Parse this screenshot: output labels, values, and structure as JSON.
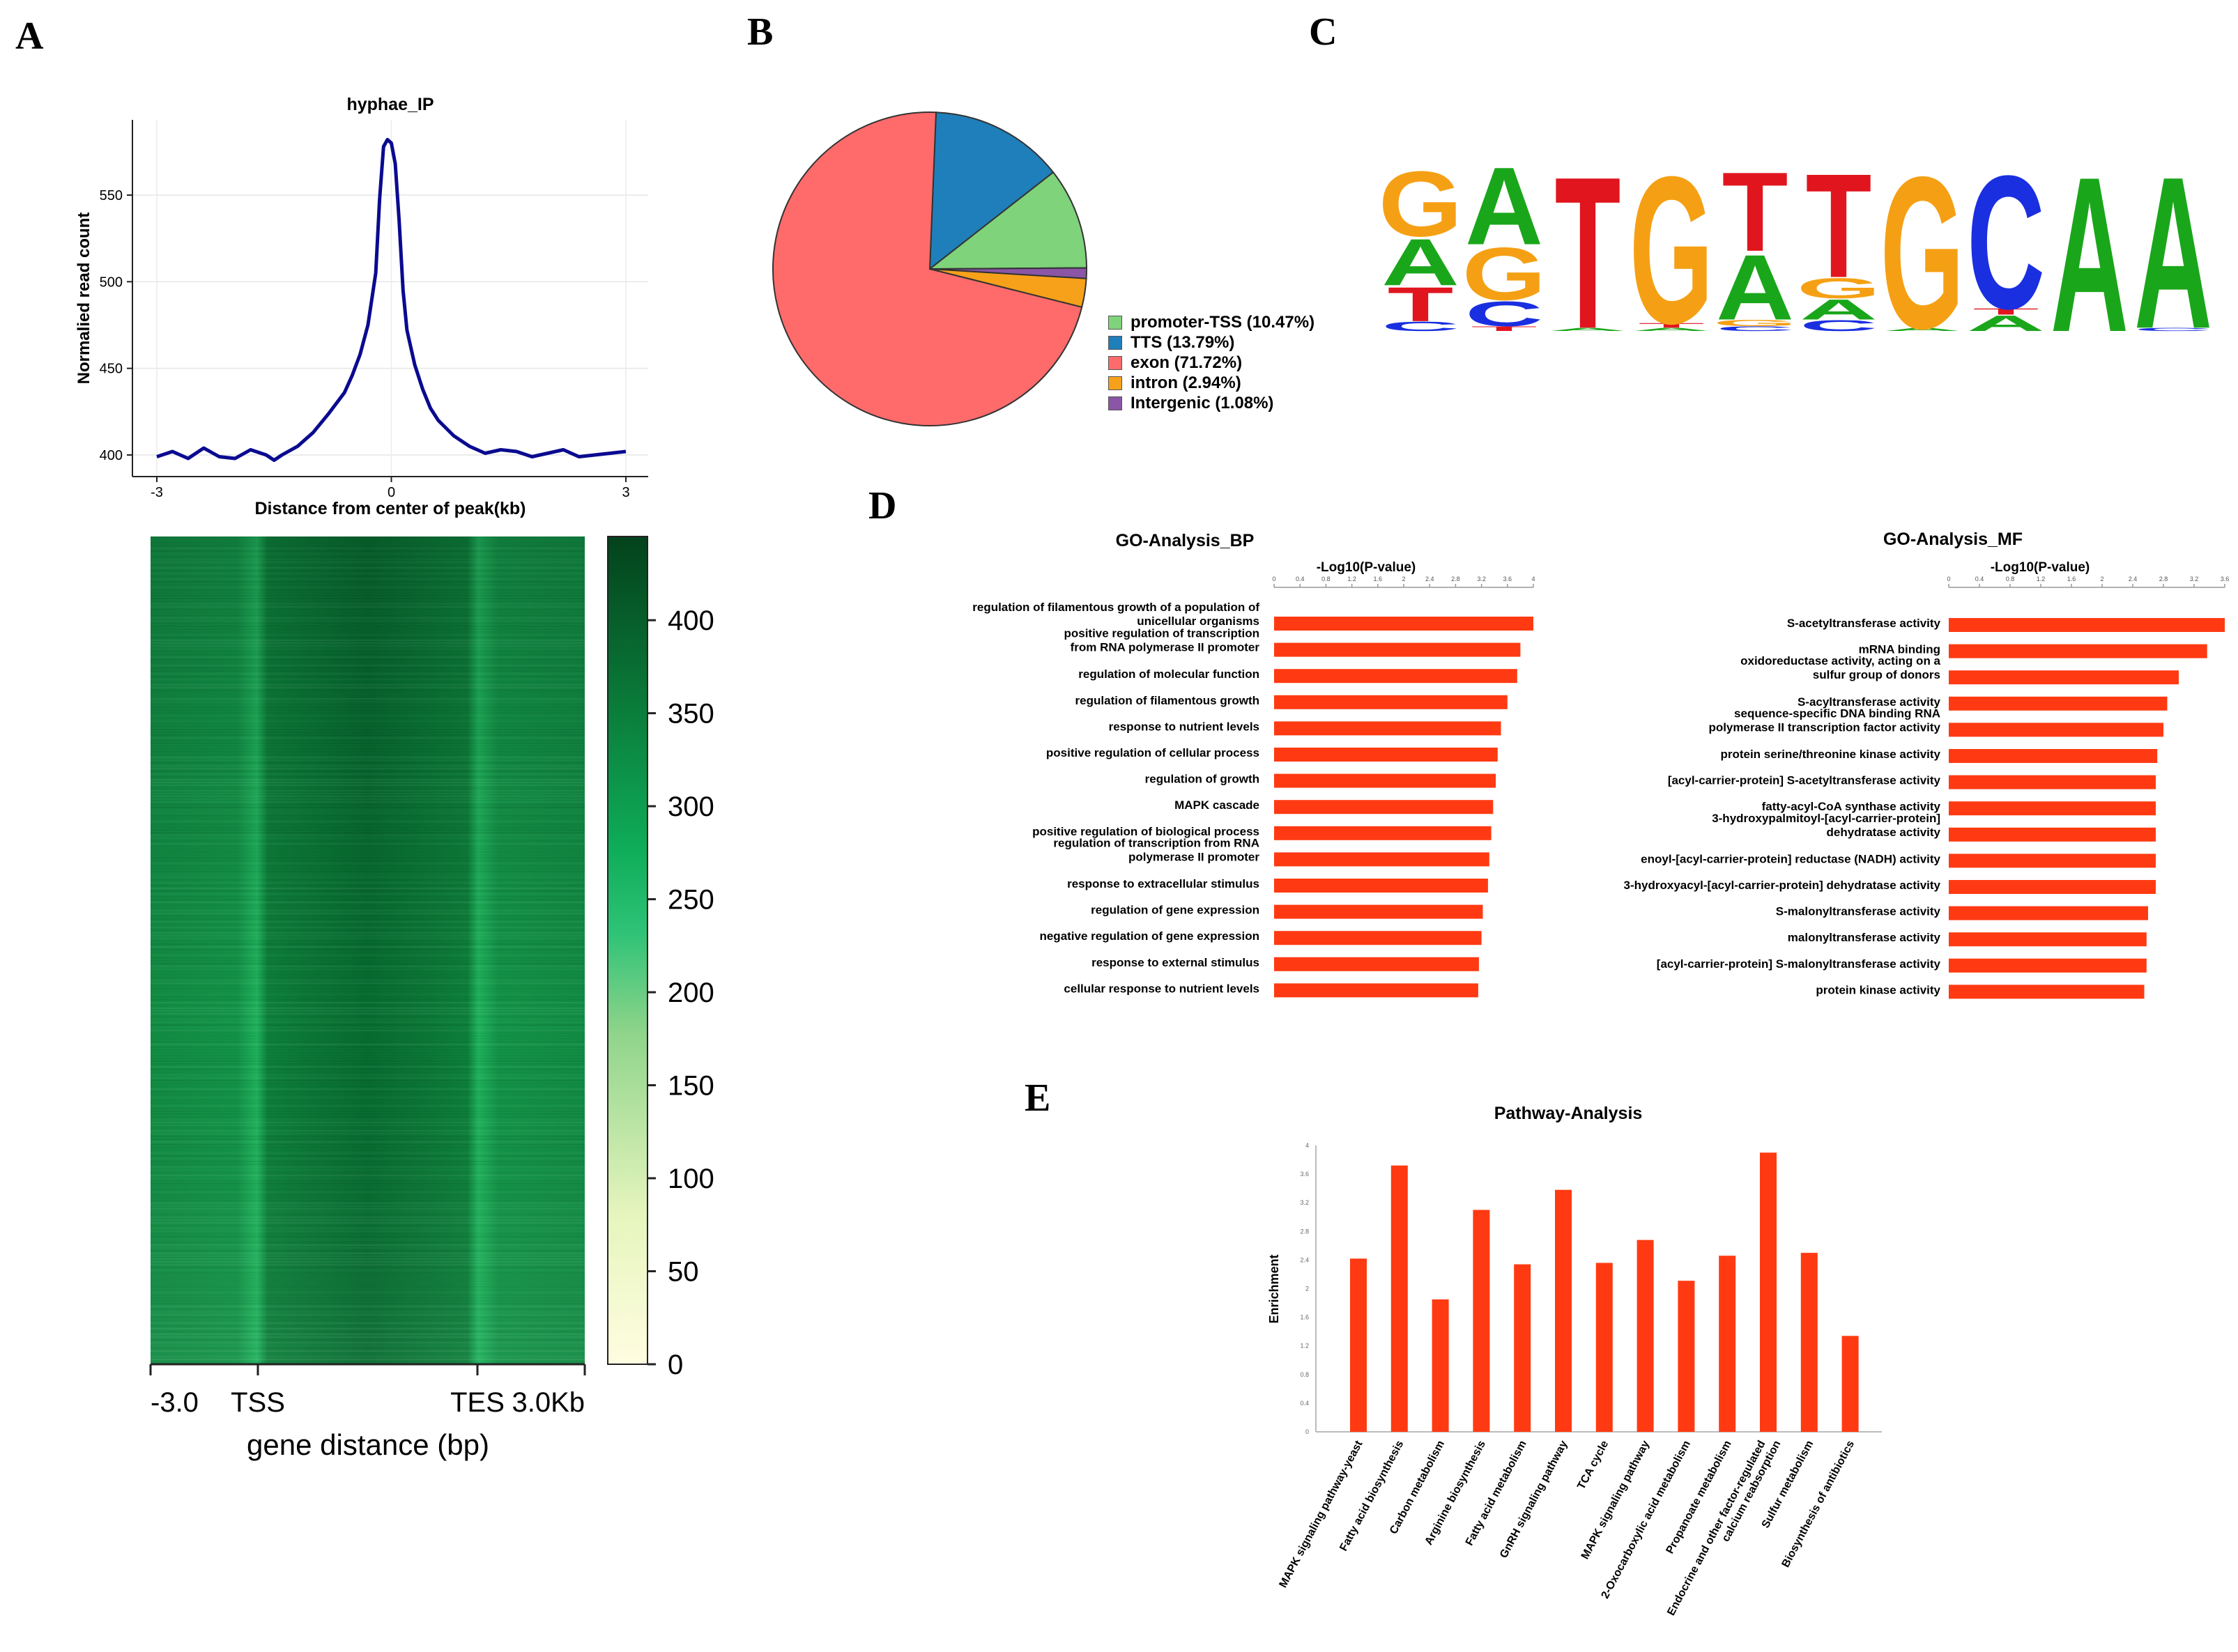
{
  "panel_labels": {
    "a": "A",
    "b": "B",
    "c": "C",
    "d": "D",
    "e": "E"
  },
  "colors": {
    "line": "#0a0a90",
    "bar": "#ff3a12",
    "pie": [
      "#7fd37a",
      "#1f7fba",
      "#ff6b6b",
      "#f7a11a",
      "#8b56a6"
    ],
    "motif": {
      "A": "#1aa61a",
      "C": "#1a2fe0",
      "G": "#f5a014",
      "T": "#e0151e"
    }
  },
  "chart_data": [
    {
      "id": "A-profile",
      "type": "line",
      "title": "hyphae_IP",
      "xlabel": "Distance from center of peak(kb)",
      "ylabel": "Normalied read count",
      "xticks": [
        "-3",
        "0",
        "3"
      ],
      "yticks": [
        400,
        450,
        500,
        550
      ],
      "xlim": [
        -3,
        3
      ],
      "ylim": [
        390,
        590
      ],
      "x": [
        -3.0,
        -2.8,
        -2.6,
        -2.4,
        -2.2,
        -2.0,
        -1.8,
        -1.6,
        -1.5,
        -1.4,
        -1.2,
        -1.0,
        -0.8,
        -0.6,
        -0.5,
        -0.4,
        -0.3,
        -0.2,
        -0.15,
        -0.1,
        -0.05,
        0.0,
        0.05,
        0.1,
        0.15,
        0.2,
        0.3,
        0.4,
        0.5,
        0.6,
        0.8,
        1.0,
        1.2,
        1.4,
        1.6,
        1.8,
        2.0,
        2.2,
        2.4,
        2.6,
        2.8,
        3.0
      ],
      "y": [
        399,
        402,
        398,
        404,
        399,
        398,
        403,
        400,
        397,
        400,
        405,
        413,
        424,
        436,
        446,
        458,
        475,
        505,
        548,
        578,
        582,
        580,
        568,
        535,
        495,
        472,
        452,
        438,
        427,
        420,
        411,
        405,
        401,
        403,
        402,
        399,
        401,
        403,
        399,
        400,
        401,
        402
      ]
    },
    {
      "id": "A-heatmap",
      "type": "heatmap",
      "xlabel": "gene distance (bp)",
      "xticks": [
        "-3.0",
        "TSS",
        "TES",
        "3.0Kb"
      ],
      "colorbar_ticks": [
        0,
        50,
        100,
        150,
        200,
        250,
        300,
        350,
        400
      ],
      "colorbar_max": 445
    },
    {
      "id": "B-pie",
      "type": "pie",
      "labels": [
        "promoter-TSS (10.47%)",
        "TTS (13.79%)",
        "exon (71.72%)",
        "intron (2.94%)",
        "Intergenic (1.08%)"
      ],
      "values": [
        10.47,
        13.79,
        71.72,
        2.94,
        1.08
      ],
      "slice_order": [
        "TTS",
        "promoter-TSS",
        "Intergenic",
        "intron",
        "exon"
      ]
    },
    {
      "id": "C-motif",
      "type": "sequence-logo",
      "positions": [
        [
          {
            "b": "C",
            "h": 0.06
          },
          {
            "b": "T",
            "h": 0.22
          },
          {
            "b": "A",
            "h": 0.3
          },
          {
            "b": "G",
            "h": 0.42
          }
        ],
        [
          {
            "b": "T",
            "h": 0.03
          },
          {
            "b": "C",
            "h": 0.16
          },
          {
            "b": "G",
            "h": 0.34
          },
          {
            "b": "A",
            "h": 0.5
          }
        ],
        [
          {
            "b": "A",
            "h": 0.02
          },
          {
            "b": "T",
            "h": 0.98
          }
        ],
        [
          {
            "b": "A",
            "h": 0.02
          },
          {
            "b": "T",
            "h": 0.03
          },
          {
            "b": "G",
            "h": 0.95
          }
        ],
        [
          {
            "b": "C",
            "h": 0.03
          },
          {
            "b": "G",
            "h": 0.04
          },
          {
            "b": "A",
            "h": 0.42
          },
          {
            "b": "T",
            "h": 0.51
          }
        ],
        [
          {
            "b": "C",
            "h": 0.07
          },
          {
            "b": "A",
            "h": 0.13
          },
          {
            "b": "G",
            "h": 0.13
          },
          {
            "b": "T",
            "h": 0.67
          }
        ],
        [
          {
            "b": "A",
            "h": 0.02
          },
          {
            "b": "G",
            "h": 0.98
          }
        ],
        [
          {
            "b": "A",
            "h": 0.1
          },
          {
            "b": "T",
            "h": 0.04
          },
          {
            "b": "C",
            "h": 0.86
          }
        ],
        [
          {
            "b": "A",
            "h": 1.0
          }
        ],
        [
          {
            "b": "C",
            "h": 0.02
          },
          {
            "b": "A",
            "h": 0.98
          }
        ]
      ]
    },
    {
      "id": "D-BP",
      "type": "bar",
      "orientation": "horizontal",
      "title": "GO-Analysis_BP",
      "xlabel": "-Log10(P-value)",
      "xticks": [
        "0",
        "0.4",
        "0.8",
        "1.2",
        "1.6",
        "2",
        "2.4",
        "2.8",
        "3.2",
        "3.6",
        "4"
      ],
      "xlim": [
        0,
        4.0
      ],
      "categories": [
        [
          "regulation of filamentous growth of a population of",
          "unicellular organisms"
        ],
        [
          "positive regulation of transcription",
          "from RNA polymerase II promoter"
        ],
        [
          "regulation of molecular function"
        ],
        [
          "regulation of filamentous growth"
        ],
        [
          "response to nutrient levels"
        ],
        [
          "positive regulation of cellular process"
        ],
        [
          "regulation of growth"
        ],
        [
          "MAPK cascade"
        ],
        [
          "positive regulation of biological process"
        ],
        [
          "regulation of transcription from RNA",
          "polymerase II promoter"
        ],
        [
          "response to extracellular stimulus"
        ],
        [
          "regulation of gene expression"
        ],
        [
          "negative regulation of gene expression"
        ],
        [
          "response to external stimulus"
        ],
        [
          "cellular response to nutrient levels"
        ]
      ],
      "values": [
        4.0,
        3.8,
        3.75,
        3.6,
        3.5,
        3.45,
        3.42,
        3.38,
        3.35,
        3.32,
        3.3,
        3.22,
        3.2,
        3.16,
        3.15
      ]
    },
    {
      "id": "D-MF",
      "type": "bar",
      "orientation": "horizontal",
      "title": "GO-Analysis_MF",
      "xlabel": "-Log10(P-value)",
      "xticks": [
        "0",
        "0.4",
        "0.8",
        "1.2",
        "1.6",
        "2",
        "2.4",
        "2.8",
        "3.2",
        "3.6"
      ],
      "xlim": [
        0,
        3.6
      ],
      "categories": [
        [
          "S-acetyltransferase activity"
        ],
        [
          "mRNA binding"
        ],
        [
          "oxidoreductase activity, acting on a",
          "sulfur group of donors"
        ],
        [
          "S-acyltransferase activity"
        ],
        [
          "sequence-specific DNA binding RNA",
          "polymerase II transcription factor activity"
        ],
        [
          "protein serine/threonine kinase activity"
        ],
        [
          "[acyl-carrier-protein] S-acetyltransferase activity"
        ],
        [
          "fatty-acyl-CoA synthase activity"
        ],
        [
          "3-hydroxypalmitoyl-[acyl-carrier-protein]",
          "dehydratase activity"
        ],
        [
          "enoyl-[acyl-carrier-protein] reductase (NADH) activity"
        ],
        [
          "3-hydroxyacyl-[acyl-carrier-protein] dehydratase activity"
        ],
        [
          "S-malonyltransferase activity"
        ],
        [
          "malonyltransferase activity"
        ],
        [
          "[acyl-carrier-protein] S-malonyltransferase activity"
        ],
        [
          "protein kinase activity"
        ]
      ],
      "values": [
        3.6,
        3.37,
        3.0,
        2.85,
        2.8,
        2.72,
        2.7,
        2.7,
        2.7,
        2.7,
        2.7,
        2.6,
        2.58,
        2.58,
        2.55
      ]
    },
    {
      "id": "E-pathway",
      "type": "bar",
      "orientation": "vertical",
      "title": "Pathway-Analysis",
      "ylabel": "Enrichment",
      "yticks": [
        "0",
        "0.4",
        "0.8",
        "1.2",
        "1.6",
        "2",
        "2.4",
        "2.8",
        "3.2",
        "3.6",
        "4"
      ],
      "ylim": [
        0,
        4.0
      ],
      "categories": [
        [
          "MAPK signaling pathway-yeast"
        ],
        [
          "Fatty acid biosynthesis"
        ],
        [
          "Carbon metabolism"
        ],
        [
          "Arginine biosynthesis"
        ],
        [
          "Fatty acid metabolism"
        ],
        [
          "GnRH signaling pathway"
        ],
        [
          "TCA cycle"
        ],
        [
          "MAPK signaling pathway"
        ],
        [
          "2-Oxocarboxylic acid metabolism"
        ],
        [
          "Propanoate metabolism"
        ],
        [
          "Endocrine and other factor-regulated",
          "calcium reabsorption"
        ],
        [
          "Sulfur metabolism"
        ],
        [
          "Biosynthesis of antibiotics"
        ]
      ],
      "values": [
        2.42,
        3.72,
        1.85,
        3.1,
        2.34,
        3.38,
        2.36,
        2.68,
        2.11,
        2.46,
        3.9,
        2.5,
        1.34
      ]
    }
  ]
}
